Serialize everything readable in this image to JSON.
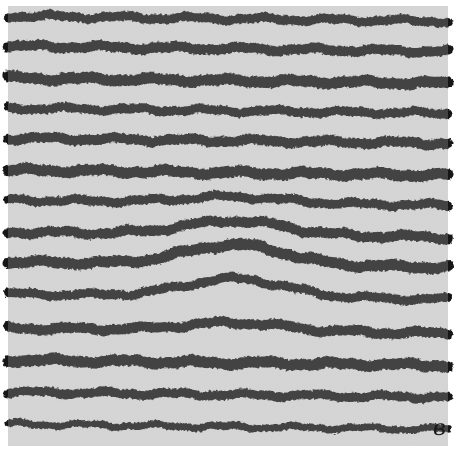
{
  "figure": {
    "panel_label": "в",
    "colors": {
      "paper": "#d9d9d9",
      "ink": "#141414",
      "frame": "#ffffff"
    }
  }
}
